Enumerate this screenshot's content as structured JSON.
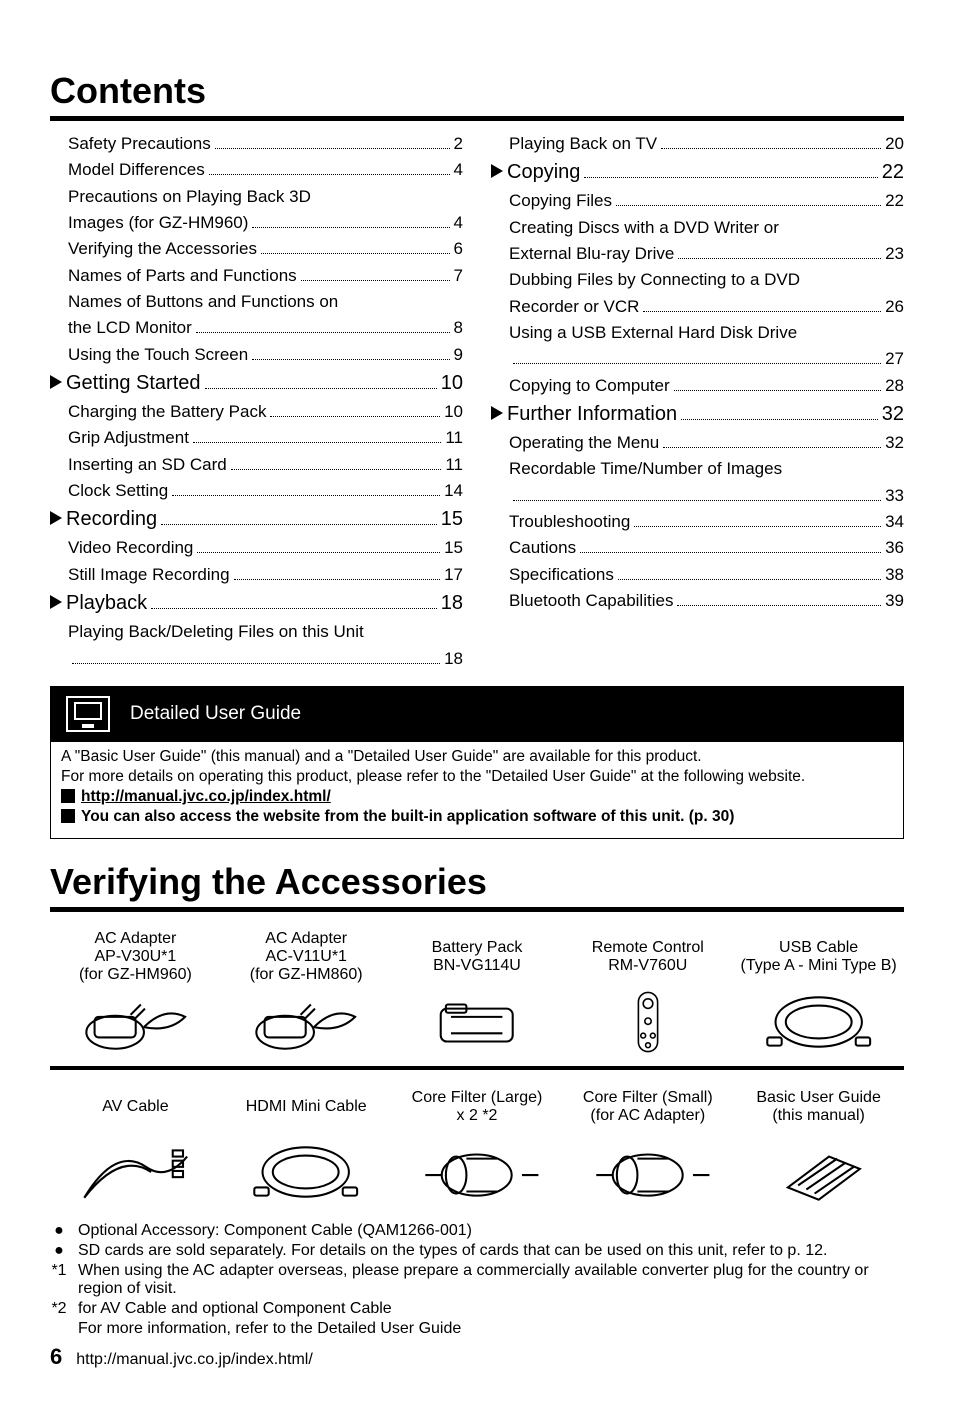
{
  "headings": {
    "contents": "Contents",
    "verifying": "Verifying the Accessories"
  },
  "toc": {
    "left": [
      {
        "type": "item",
        "label": "Safety Precautions",
        "page": "2",
        "indent": true
      },
      {
        "type": "item",
        "label": "Model Differences",
        "page": "4",
        "indent": true
      },
      {
        "type": "wrap",
        "label": "Precautions on Playing Back 3D Images (for GZ-HM960)",
        "page": "4",
        "indent": true
      },
      {
        "type": "item",
        "label": "Verifying the Accessories",
        "page": "6",
        "indent": true
      },
      {
        "type": "item",
        "label": "Names of Parts and Functions",
        "page": "7",
        "indent": true
      },
      {
        "type": "wrap",
        "label": "Names of Buttons and Functions on the LCD Monitor",
        "page": "8",
        "indent": true
      },
      {
        "type": "item",
        "label": "Using the Touch Screen",
        "page": "9",
        "indent": true
      },
      {
        "type": "section",
        "label": "Getting Started",
        "page": "10"
      },
      {
        "type": "item",
        "label": "Charging the Battery Pack",
        "page": "10",
        "indent": true
      },
      {
        "type": "item",
        "label": "Grip Adjustment",
        "page": "11",
        "indent": true
      },
      {
        "type": "item",
        "label": "Inserting an SD Card",
        "page": "11",
        "indent": true
      },
      {
        "type": "item",
        "label": "Clock Setting",
        "page": "14",
        "indent": true
      },
      {
        "type": "section",
        "label": "Recording",
        "page": "15"
      },
      {
        "type": "item",
        "label": "Video Recording",
        "page": "15",
        "indent": true
      },
      {
        "type": "item",
        "label": "Still Image Recording",
        "page": "17",
        "indent": true
      },
      {
        "type": "section",
        "label": "Playback",
        "page": "18"
      },
      {
        "type": "wrap",
        "label": "Playing Back/Deleting Files on this Unit",
        "page": "18",
        "indent": true,
        "dotsNewline": true
      }
    ],
    "right": [
      {
        "type": "item",
        "label": "Playing Back on TV",
        "page": "20",
        "indent": true
      },
      {
        "type": "section",
        "label": "Copying",
        "page": "22"
      },
      {
        "type": "item",
        "label": "Copying Files",
        "page": "22",
        "indent": true
      },
      {
        "type": "wrap",
        "label": "Creating Discs with a DVD Writer or External Blu-ray Drive",
        "page": "23",
        "indent": true
      },
      {
        "type": "wrap",
        "label": "Dubbing Files by Connecting to a DVD Recorder or VCR",
        "page": "26",
        "indent": true
      },
      {
        "type": "wrap",
        "label": "Using a USB External Hard Disk Drive",
        "page": "27",
        "indent": true,
        "dotsNewline": true
      },
      {
        "type": "item",
        "label": "Copying to Computer",
        "page": "28",
        "indent": true
      },
      {
        "type": "section",
        "label": "Further Information",
        "page": "32"
      },
      {
        "type": "item",
        "label": "Operating the Menu",
        "page": "32",
        "indent": true
      },
      {
        "type": "wrap",
        "label": "Recordable Time/Number of Images",
        "page": "33",
        "indent": true,
        "dotsNewline": true
      },
      {
        "type": "item",
        "label": "Troubleshooting",
        "page": "34",
        "indent": true
      },
      {
        "type": "item",
        "label": "Cautions",
        "page": "36",
        "indent": true
      },
      {
        "type": "item",
        "label": "Specifications",
        "page": "38",
        "indent": true
      },
      {
        "type": "item",
        "label": "Bluetooth Capabilities",
        "page": "39",
        "indent": true
      }
    ]
  },
  "dug": {
    "banner": "Detailed User Guide",
    "line1": "A \"Basic User Guide\" (this manual) and a \"Detailed User Guide\" are available for this product.",
    "line2": "For more details on operating this product, please refer to the \"Detailed User Guide\" at the following website.",
    "link": "http://manual.jvc.co.jp/index.html/",
    "line3": "You can also access the website from the built-in application software of this unit. (p. 30)"
  },
  "accessories": {
    "row1": [
      {
        "name": "AC Adapter\nAP-V30U*1\n(for GZ-HM960)",
        "icon": "adapter"
      },
      {
        "name": "AC Adapter\nAC-V11U*1\n(for GZ-HM860)",
        "icon": "adapter"
      },
      {
        "name": "Battery Pack\nBN-VG114U",
        "icon": "battery"
      },
      {
        "name": "Remote Control\nRM-V760U",
        "icon": "remote"
      },
      {
        "name": "USB Cable\n(Type A - Mini Type B)",
        "icon": "cable-loop"
      }
    ],
    "row2": [
      {
        "name": "AV Cable",
        "icon": "avcable"
      },
      {
        "name": "HDMI Mini Cable",
        "icon": "cable-loop"
      },
      {
        "name": "Core Filter (Large)\nx 2 *2",
        "icon": "filter"
      },
      {
        "name": "Core Filter (Small)\n(for AC Adapter)",
        "icon": "filter"
      },
      {
        "name": "Basic User Guide\n(this manual)",
        "icon": "manual"
      }
    ]
  },
  "notes": [
    {
      "mark": "●",
      "text": "Optional Accessory: Component Cable (QAM1266-001)"
    },
    {
      "mark": "●",
      "text": "SD cards are sold separately. For details on the types of cards that can be used on this unit, refer to p. 12."
    },
    {
      "mark": "*1",
      "text": "When using the AC adapter overseas, please prepare a commercially available converter plug for the country or region of visit."
    },
    {
      "mark": "*2",
      "text": "for AV Cable and optional Component Cable"
    },
    {
      "mark": "",
      "text": "For more information, refer to the Detailed User Guide"
    }
  ],
  "footer": {
    "page": "6",
    "url": "http://manual.jvc.co.jp/index.html/"
  }
}
